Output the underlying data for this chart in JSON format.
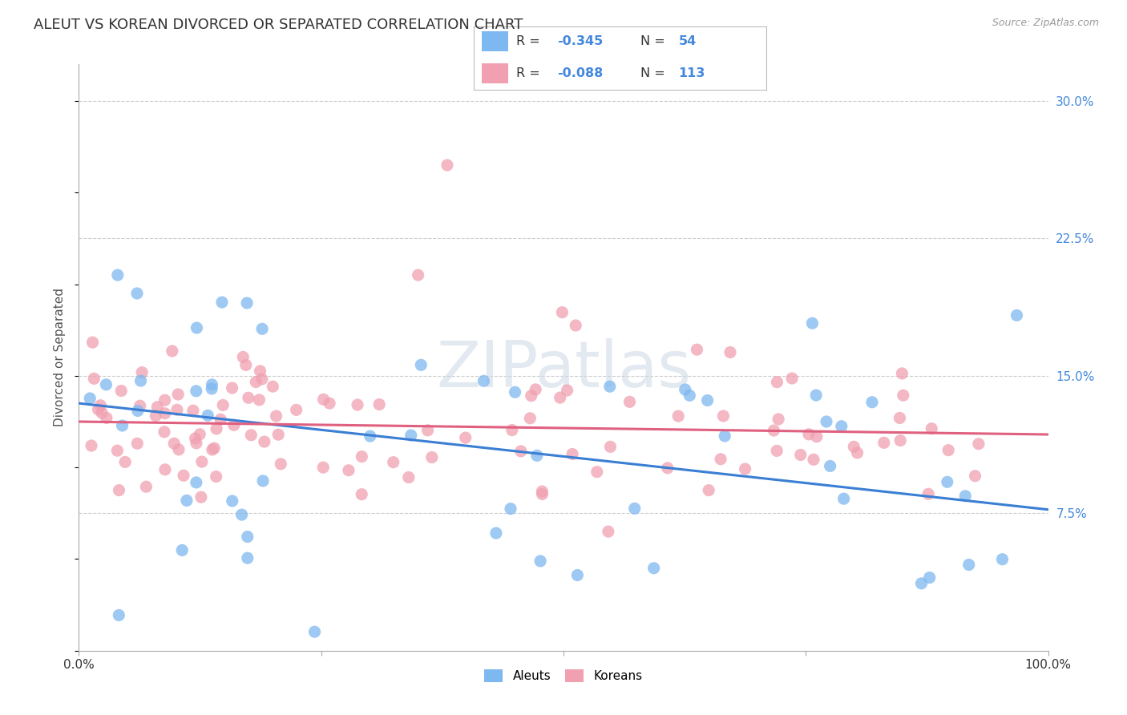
{
  "title": "ALEUT VS KOREAN DIVORCED OR SEPARATED CORRELATION CHART",
  "source": "Source: ZipAtlas.com",
  "ylabel": "Divorced or Separated",
  "xlim": [
    0,
    1.0
  ],
  "ylim": [
    0,
    0.32
  ],
  "xtick_vals": [
    0.0,
    0.25,
    0.5,
    0.75,
    1.0
  ],
  "xtick_labels": [
    "0.0%",
    "",
    "",
    "",
    "100.0%"
  ],
  "ytick_labels_right": [
    "7.5%",
    "15.0%",
    "22.5%",
    "30.0%"
  ],
  "ytick_vals_right": [
    0.075,
    0.15,
    0.225,
    0.3
  ],
  "aleut_color": "#7eb8f0",
  "korean_color": "#f0a0b0",
  "aleut_line_color": "#3a7fd4",
  "korean_line_color": "#e06080",
  "label_color": "#4488dd",
  "aleut_R": "-0.345",
  "aleut_N": "54",
  "korean_R": "-0.088",
  "korean_N": "113",
  "watermark": "ZIPatlas",
  "background_color": "#ffffff",
  "grid_color": "#cccccc",
  "aleut_line_start": 0.135,
  "aleut_line_end": 0.077,
  "korean_line_start": 0.125,
  "korean_line_end": 0.118
}
